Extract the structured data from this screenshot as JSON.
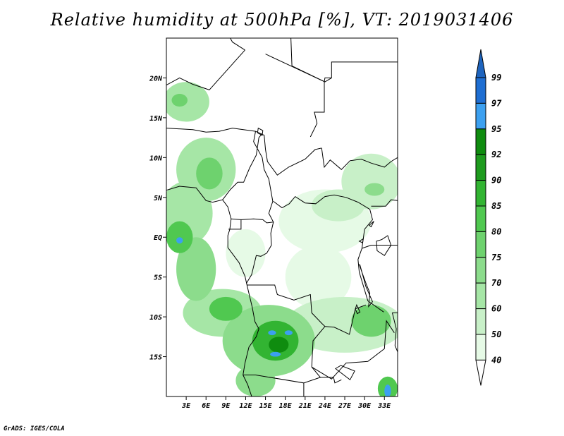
{
  "title": "Relative humidity at 500hPa [%], VT: 2019031406",
  "credit": "GrADS: IGES/COLA",
  "map": {
    "lon_range": [
      0,
      35
    ],
    "lat_range": [
      -20,
      25
    ],
    "lat_ticks": [
      {
        "value": 20,
        "label": "20N"
      },
      {
        "value": 15,
        "label": "15N"
      },
      {
        "value": 10,
        "label": "10N"
      },
      {
        "value": 5,
        "label": "5N"
      },
      {
        "value": 0,
        "label": "EQ"
      },
      {
        "value": -5,
        "label": "5S"
      },
      {
        "value": -10,
        "label": "10S"
      },
      {
        "value": -15,
        "label": "15S"
      }
    ],
    "lon_ticks": [
      {
        "value": 3,
        "label": "3E"
      },
      {
        "value": 6,
        "label": "6E"
      },
      {
        "value": 9,
        "label": "9E"
      },
      {
        "value": 12,
        "label": "12E"
      },
      {
        "value": 15,
        "label": "15E"
      },
      {
        "value": 18,
        "label": "18E"
      },
      {
        "value": 21,
        "label": "21E"
      },
      {
        "value": 24,
        "label": "24E"
      },
      {
        "value": 27,
        "label": "27E"
      },
      {
        "value": 30,
        "label": "30E"
      },
      {
        "value": 33,
        "label": "33E"
      }
    ]
  },
  "colorbar": {
    "levels": [
      {
        "label": "40",
        "color": "#ffffff"
      },
      {
        "label": "50",
        "color": "#e6fae6"
      },
      {
        "label": "60",
        "color": "#c8f0c8"
      },
      {
        "label": "70",
        "color": "#a6e6a6"
      },
      {
        "label": "75",
        "color": "#8cdc8c"
      },
      {
        "label": "80",
        "color": "#6ed26e"
      },
      {
        "label": "85",
        "color": "#50c850"
      },
      {
        "label": "90",
        "color": "#32b432"
      },
      {
        "label": "92",
        "color": "#1e9b1e"
      },
      {
        "label": "95",
        "color": "#0f8c0f"
      },
      {
        "label": "97",
        "color": "#3ca0f0"
      },
      {
        "label": "99",
        "color": "#1e6ed2"
      }
    ],
    "top_color": "#1e64be"
  },
  "humidity_fields": [
    {
      "lon": 3.0,
      "lat": 17.0,
      "rlon": 3.5,
      "rlat": 2.5,
      "level": 3
    },
    {
      "lon": 2.0,
      "lat": 17.2,
      "rlon": 1.2,
      "rlat": 0.8,
      "level": 5
    },
    {
      "lon": 6.0,
      "lat": 8.5,
      "rlon": 4.5,
      "rlat": 4.0,
      "level": 3
    },
    {
      "lon": 6.5,
      "lat": 8.0,
      "rlon": 2.0,
      "rlat": 2.0,
      "level": 5
    },
    {
      "lon": 3.0,
      "lat": 3.0,
      "rlon": 4.0,
      "rlat": 4.0,
      "level": 3
    },
    {
      "lon": 2.0,
      "lat": 0.0,
      "rlon": 2.0,
      "rlat": 2.0,
      "level": 6
    },
    {
      "lon": 2.0,
      "lat": -0.4,
      "rlon": 0.5,
      "rlat": 0.4,
      "level": 10
    },
    {
      "lon": 4.5,
      "lat": -4.0,
      "rlon": 3.0,
      "rlat": 4.0,
      "level": 4
    },
    {
      "lon": 8.5,
      "lat": -9.5,
      "rlon": 6.0,
      "rlat": 3.0,
      "level": 3
    },
    {
      "lon": 9.0,
      "lat": -9.0,
      "rlon": 2.5,
      "rlat": 1.5,
      "level": 6
    },
    {
      "lon": 15.5,
      "lat": -13.0,
      "rlon": 7.0,
      "rlat": 4.5,
      "level": 4
    },
    {
      "lon": 16.5,
      "lat": -13.0,
      "rlon": 3.5,
      "rlat": 2.5,
      "level": 7
    },
    {
      "lon": 17.0,
      "lat": -13.5,
      "rlon": 1.5,
      "rlat": 1.0,
      "level": 9
    },
    {
      "lon": 16.0,
      "lat": -12.0,
      "rlon": 0.6,
      "rlat": 0.3,
      "level": 10
    },
    {
      "lon": 18.5,
      "lat": -12.0,
      "rlon": 0.6,
      "rlat": 0.3,
      "level": 10
    },
    {
      "lon": 16.5,
      "lat": -14.7,
      "rlon": 0.8,
      "rlat": 0.3,
      "level": 10
    },
    {
      "lon": 13.5,
      "lat": -18.0,
      "rlon": 3.0,
      "rlat": 2.0,
      "level": 4
    },
    {
      "lon": 27.0,
      "lat": -11.0,
      "rlon": 9.0,
      "rlat": 3.5,
      "level": 2
    },
    {
      "lon": 31.0,
      "lat": -10.5,
      "rlon": 3.0,
      "rlat": 2.0,
      "level": 5
    },
    {
      "lon": 33.5,
      "lat": -19.0,
      "rlon": 1.5,
      "rlat": 1.5,
      "level": 6
    },
    {
      "lon": 33.5,
      "lat": -19.3,
      "rlon": 0.5,
      "rlat": 0.8,
      "level": 10
    },
    {
      "lon": 31.0,
      "lat": 7.0,
      "rlon": 4.5,
      "rlat": 3.5,
      "level": 2
    },
    {
      "lon": 31.5,
      "lat": 6.0,
      "rlon": 1.5,
      "rlat": 0.8,
      "level": 4
    },
    {
      "lon": 24.0,
      "lat": 2.0,
      "rlon": 7.0,
      "rlat": 4.0,
      "level": 1
    },
    {
      "lon": 26.0,
      "lat": 4.0,
      "rlon": 4.0,
      "rlat": 2.0,
      "level": 2
    },
    {
      "lon": 23.0,
      "lat": -5.0,
      "rlon": 5.0,
      "rlat": 4.0,
      "level": 1
    },
    {
      "lon": 12.0,
      "lat": -2.0,
      "rlon": 3.0,
      "rlat": 3.0,
      "level": 1
    }
  ],
  "borders": [
    [
      [
        0,
        13.7
      ],
      [
        4,
        13.5
      ],
      [
        6,
        13.2
      ],
      [
        8,
        13.3
      ],
      [
        10,
        13.7
      ],
      [
        13.5,
        13.3
      ],
      [
        14.8,
        12.8
      ],
      [
        15,
        11
      ],
      [
        15.3,
        9.5
      ],
      [
        16.8,
        7.8
      ],
      [
        18.5,
        8.8
      ],
      [
        21,
        9.8
      ],
      [
        22.5,
        11
      ],
      [
        23.5,
        11.2
      ]
    ],
    [
      [
        13.5,
        13.3
      ],
      [
        13.2,
        12
      ],
      [
        14.5,
        10
      ],
      [
        14.8,
        8.5
      ],
      [
        15.5,
        7.3
      ],
      [
        16.1,
        4.5
      ],
      [
        15.5,
        3
      ],
      [
        16.2,
        1.9
      ],
      [
        15.8,
        0.5
      ],
      [
        15.9,
        -1
      ],
      [
        15.2,
        -2
      ],
      [
        14.3,
        -2.4
      ],
      [
        13.6,
        -2.3
      ],
      [
        12.9,
        -4.7
      ],
      [
        12.1,
        -5.8
      ]
    ],
    [
      [
        8.5,
        4.7
      ],
      [
        9.7,
        6
      ],
      [
        10.8,
        6.9
      ],
      [
        11.7,
        6.9
      ],
      [
        12.6,
        8.7
      ],
      [
        13.6,
        10.3
      ],
      [
        14,
        12.5
      ],
      [
        14.5,
        13
      ]
    ],
    [
      [
        9.8,
        2.3
      ],
      [
        11.3,
        2.2
      ],
      [
        13.2,
        2.3
      ],
      [
        14.6,
        2.2
      ],
      [
        15.2,
        1.8
      ],
      [
        16.2,
        1.9
      ]
    ],
    [
      [
        9.4,
        1.0
      ],
      [
        11.3,
        1.0
      ],
      [
        11.3,
        2.2
      ]
    ],
    [
      [
        16.2,
        4.5
      ],
      [
        17.5,
        3.7
      ],
      [
        18.6,
        4.2
      ],
      [
        19.5,
        5.1
      ],
      [
        21,
        4.3
      ],
      [
        22.6,
        4.2
      ],
      [
        24,
        5.1
      ],
      [
        25.4,
        5.3
      ],
      [
        27.2,
        5
      ],
      [
        29,
        4.4
      ],
      [
        30.8,
        3.5
      ]
    ],
    [
      [
        23.5,
        11.2
      ],
      [
        23.9,
        8.8
      ],
      [
        24.8,
        9.7
      ],
      [
        26.5,
        8.5
      ],
      [
        27.8,
        9.6
      ],
      [
        29.5,
        9.8
      ],
      [
        31,
        9.3
      ],
      [
        33,
        8.8
      ],
      [
        34,
        9.5
      ],
      [
        35,
        10
      ]
    ],
    [
      [
        21.8,
        12.6
      ],
      [
        22.8,
        14.3
      ],
      [
        22.4,
        15.7
      ],
      [
        23.9,
        15.7
      ],
      [
        23.9,
        19.5
      ],
      [
        24,
        20
      ],
      [
        25,
        20
      ],
      [
        25,
        22
      ],
      [
        35,
        22
      ]
    ],
    [
      [
        15,
        23
      ],
      [
        24,
        19.5
      ],
      [
        25,
        20
      ]
    ],
    [
      [
        0,
        19.1
      ],
      [
        2,
        20
      ],
      [
        4,
        19.2
      ],
      [
        6.5,
        18.5
      ],
      [
        11.9,
        23.5
      ]
    ],
    [
      [
        11.9,
        23.5
      ],
      [
        10,
        24.5
      ],
      [
        9,
        26
      ]
    ],
    [
      [
        18.8,
        26
      ],
      [
        19,
        21.5
      ],
      [
        24,
        19.5
      ]
    ],
    [
      [
        30.8,
        3.5
      ],
      [
        31.2,
        2.2
      ],
      [
        30,
        1
      ],
      [
        29.6,
        -1.4
      ],
      [
        29,
        -2.8
      ],
      [
        29.2,
        -4.4
      ],
      [
        30.5,
        -8
      ],
      [
        32.9,
        -9.4
      ]
    ],
    [
      [
        12.2,
        -6
      ],
      [
        16.4,
        -6
      ],
      [
        16.8,
        -7.2
      ],
      [
        19.3,
        -7.9
      ],
      [
        21.8,
        -7.2
      ],
      [
        22,
        -9.5
      ],
      [
        23.5,
        -10.8
      ],
      [
        24,
        -11.2
      ],
      [
        22.2,
        -13
      ],
      [
        22,
        -16.3
      ],
      [
        23.3,
        -17.6
      ],
      [
        20.8,
        -18.3
      ],
      [
        13.5,
        -17.3
      ],
      [
        11.6,
        -17.3
      ]
    ],
    [
      [
        24,
        -11.2
      ],
      [
        25.4,
        -11.3
      ],
      [
        27.7,
        -12.2
      ],
      [
        28.6,
        -9
      ],
      [
        30.2,
        -8.5
      ]
    ],
    [
      [
        22,
        -16.3
      ],
      [
        25,
        -17.8
      ],
      [
        27.2,
        -15.8
      ],
      [
        30.5,
        -15.6
      ],
      [
        33,
        -14
      ],
      [
        33.3,
        -10.5
      ],
      [
        34.5,
        -12
      ]
    ],
    [
      [
        23.3,
        -17.6
      ],
      [
        25.3,
        -17.6
      ],
      [
        25.5,
        -18.3
      ],
      [
        26.5,
        -17.9
      ]
    ],
    [
      [
        20.8,
        -18.3
      ],
      [
        20.8,
        -22
      ]
    ],
    [
      [
        29.6,
        -1.4
      ],
      [
        31,
        -1
      ],
      [
        33.9,
        -1
      ],
      [
        35,
        -1
      ]
    ],
    [
      [
        31,
        3.9
      ],
      [
        33.2,
        3.9
      ],
      [
        34,
        4.7
      ],
      [
        35,
        4.6
      ]
    ]
  ],
  "coastline": [
    [
      [
        0,
        5.9
      ],
      [
        2,
        6.4
      ],
      [
        4.5,
        6.2
      ],
      [
        6,
        4.6
      ],
      [
        7,
        4.4
      ],
      [
        8.5,
        4.7
      ],
      [
        9.3,
        3.8
      ],
      [
        9.8,
        2.3
      ],
      [
        9.6,
        1.0
      ],
      [
        9.3,
        0.2
      ],
      [
        9.3,
        -1.3
      ],
      [
        11,
        -3.2
      ],
      [
        11.9,
        -4.9
      ],
      [
        12.2,
        -6
      ],
      [
        13,
        -8.8
      ],
      [
        13.4,
        -10.6
      ],
      [
        14,
        -11.5
      ],
      [
        13.6,
        -12.5
      ],
      [
        12.5,
        -13.8
      ],
      [
        11.9,
        -15.8
      ],
      [
        11.6,
        -17.3
      ],
      [
        12.3,
        -18.5
      ],
      [
        13,
        -20.2
      ],
      [
        14,
        -22
      ]
    ]
  ],
  "lakes": [
    [
      [
        32.6,
        -0.3
      ],
      [
        33.5,
        0.2
      ],
      [
        34,
        -1
      ],
      [
        33,
        -2.3
      ],
      [
        31.9,
        -1.7
      ],
      [
        31.8,
        -0.5
      ],
      [
        32.6,
        -0.3
      ]
    ],
    [
      [
        29.2,
        -3.4
      ],
      [
        29.6,
        -4.4
      ],
      [
        30.3,
        -6
      ],
      [
        30.8,
        -7
      ],
      [
        30.6,
        -8.7
      ],
      [
        31.2,
        -8.1
      ],
      [
        30.2,
        -6.2
      ],
      [
        29.3,
        -3.5
      ]
    ],
    [
      [
        34.2,
        -9.5
      ],
      [
        34.8,
        -11.5
      ],
      [
        34.6,
        -13.6
      ],
      [
        35,
        -14.4
      ],
      [
        35,
        -9.5
      ],
      [
        34.2,
        -9.5
      ]
    ],
    [
      [
        28.8,
        -8.5
      ],
      [
        29.3,
        -9.4
      ],
      [
        28.9,
        -9.6
      ],
      [
        28.6,
        -9
      ]
    ],
    [
      [
        25.6,
        -16.5
      ],
      [
        27.8,
        -17.9
      ],
      [
        28.5,
        -16.8
      ],
      [
        26.4,
        -16.1
      ],
      [
        25.6,
        -16.5
      ]
    ],
    [
      [
        13.9,
        13.7
      ],
      [
        14.6,
        13.4
      ],
      [
        14.5,
        12.8
      ],
      [
        13.8,
        13.1
      ],
      [
        13.9,
        13.7
      ]
    ],
    [
      [
        29.2,
        -0.5
      ],
      [
        29.8,
        -0.2
      ],
      [
        29.7,
        -0.7
      ],
      [
        29.2,
        -0.5
      ]
    ],
    [
      [
        30.7,
        1.5
      ],
      [
        31.4,
        2.0
      ],
      [
        31.0,
        1.3
      ],
      [
        30.7,
        1.5
      ]
    ]
  ]
}
